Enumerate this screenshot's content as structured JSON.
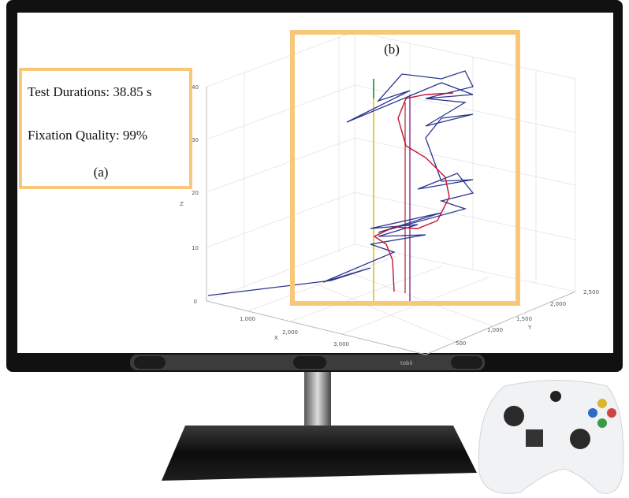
{
  "panel_a": {
    "duration": "Test Durations: 38.85 s",
    "quality": "Fixation Quality: 99%",
    "label": "(a)"
  },
  "panel_b": {
    "label": "(b)"
  },
  "plot": {
    "z_label": "Z",
    "x_label": "X",
    "y_label": "Y",
    "z_ticks": [
      "0",
      "10",
      "20",
      "30",
      "40"
    ],
    "x_ticks": [
      "1,000",
      "2,000",
      "3,000"
    ],
    "y_ticks": [
      "500",
      "1,000",
      "1,500",
      "2,000",
      "2,500"
    ]
  },
  "brand": "tobii"
}
